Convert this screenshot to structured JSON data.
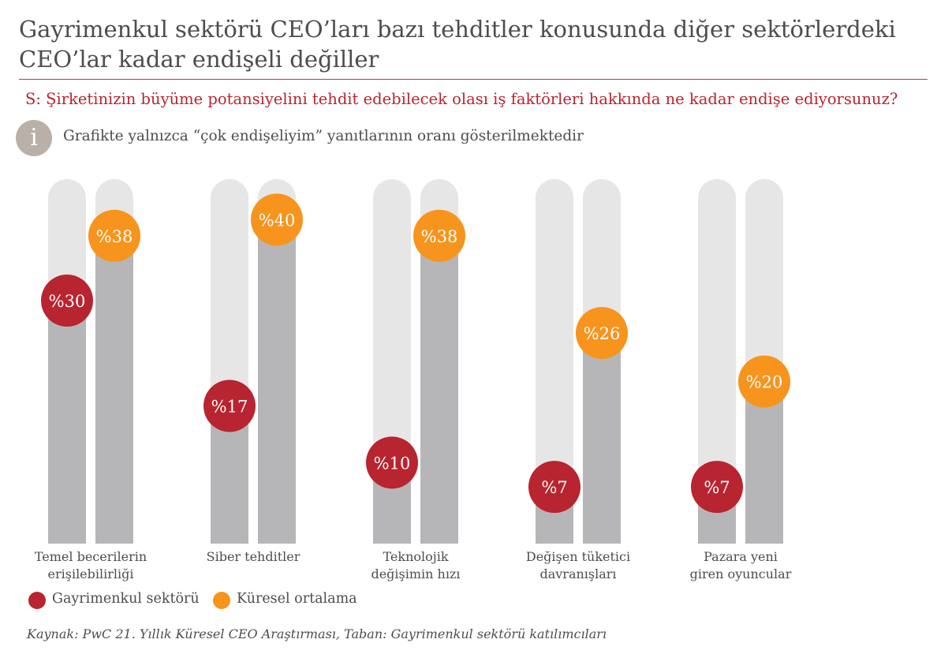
{
  "header": {
    "title": "Gayrimenkul sektörü CEO’ları bazı tehditler konusunda diğer sektörlerdeki CEO’lar kadar endişeli değiller",
    "question": "S: Şirketinizin büyüme potansiyelini tehdit edebilecek olası iş faktörleri hakkında ne kadar endişe ediyorsunuz?",
    "info_icon_glyph": "i",
    "note": "Grafikte yalnızca “çok endişeliyim” yanıtlarının oranı gösterilmektedir"
  },
  "colors": {
    "accent_red": "#b8242f",
    "accent_orange": "#f7941d",
    "bar_track": "#e6e6e6",
    "bar_fill": "#b6b6b8",
    "rule": "#c8313e"
  },
  "chart_data": {
    "type": "bar",
    "value_prefix": "%",
    "ylim": [
      0,
      40
    ],
    "categories": [
      [
        "Temel becerilerin",
        "erişilebilirliği"
      ],
      [
        "Siber tehditler"
      ],
      [
        "Teknolojik",
        "değişimin hızı"
      ],
      [
        "Değişen tüketici",
        "davranışları"
      ],
      [
        "Pazara yeni",
        "giren oyuncular"
      ]
    ],
    "series": [
      {
        "name": "Gayrimenkul sektörü",
        "color": "#b8242f",
        "values": [
          30,
          17,
          10,
          7,
          7
        ]
      },
      {
        "name": "Küresel ortalama",
        "color": "#f7941d",
        "values": [
          38,
          40,
          38,
          26,
          20
        ]
      }
    ]
  },
  "legend": {
    "items": [
      {
        "label": "Gayrimenkul sektörü",
        "color": "#b8242f"
      },
      {
        "label": "Küresel ortalama",
        "color": "#f7941d"
      }
    ]
  },
  "footer": {
    "source": "Kaynak: PwC 21. Yıllık Küresel CEO Araştırması, Taban: Gayrimenkul sektörü katılımcıları"
  }
}
